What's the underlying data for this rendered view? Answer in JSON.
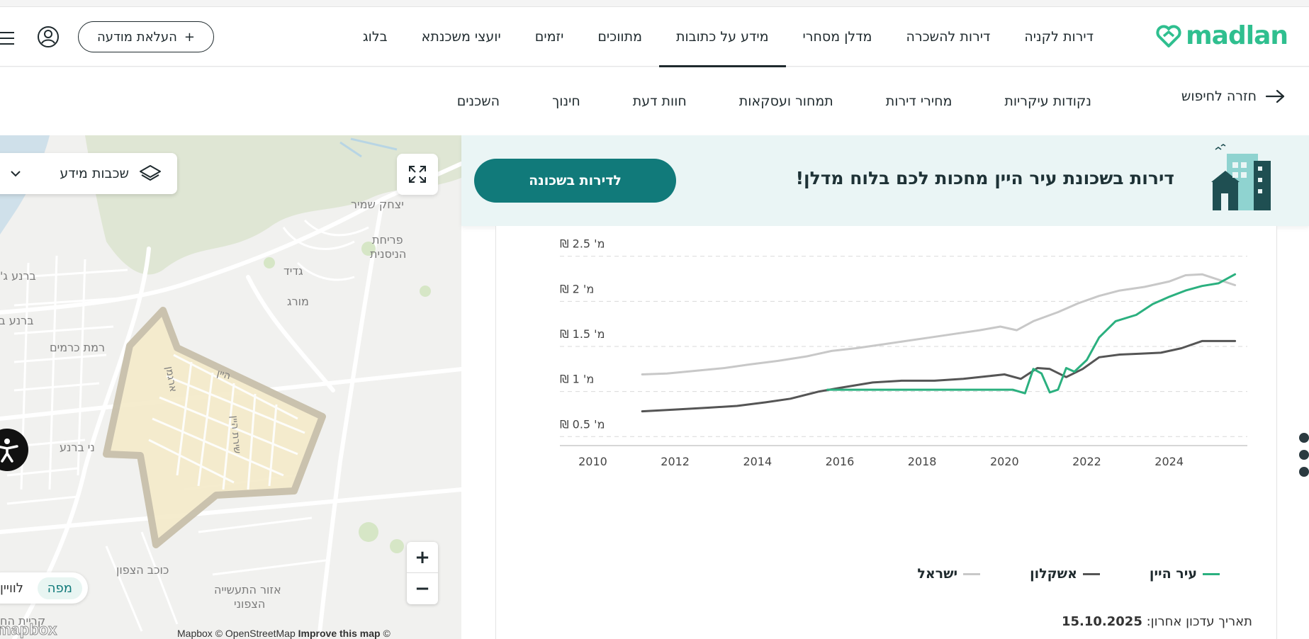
{
  "header": {
    "logo_text": "madlan",
    "nav": [
      {
        "label": "דירות לקניה"
      },
      {
        "label": "דירות להשכרה"
      },
      {
        "label": "מדלן מסחרי"
      },
      {
        "label": "מידע על כתובות",
        "active": true
      },
      {
        "label": "מתווכים"
      },
      {
        "label": "יזמים"
      },
      {
        "label": "יועצי משכנתא"
      },
      {
        "label": "בלוג"
      }
    ],
    "post_ad_label": "העלאת מודעה",
    "post_ad_plus": "+"
  },
  "subnav": {
    "back_label": "חזרה לחיפוש",
    "items": [
      {
        "label": "נקודות עיקריות"
      },
      {
        "label": "מחירי דירות"
      },
      {
        "label": "תמחור ועסקאות"
      },
      {
        "label": "חוות דעת"
      },
      {
        "label": "חינוך"
      },
      {
        "label": "השכנים"
      }
    ]
  },
  "map": {
    "layers_label": "שכבות מידע",
    "zoom_in": "+",
    "zoom_out": "−",
    "view_map": "מפה",
    "view_sat": "לוויין",
    "attribution": "Mapbox © OpenStreetMap",
    "improve": "Improve this map",
    "copyright": "©",
    "mapbox_logo": "mapbox",
    "labels": {
      "yitzhak_shamir": "יצחק שמיר",
      "priha": "פריחת",
      "hanisnit": "הניסנית",
      "gadid": "גדיד",
      "morag": "מורג",
      "barnea_g": "ברנע ג'",
      "barnea_b": "ברנע ב'",
      "ramat_kramim": "רמת כרמים",
      "nei_barnea": "ני ברנע",
      "kochav_hatzafon": "כוכב הצפון",
      "industrial": "אזור התעשייה",
      "industrial2": "הצפוני",
      "kiryat": "קריית הח",
      "street_argaman": "ארגמן",
      "street_hayain": "היין",
      "street_shirat": "שירת היין"
    }
  },
  "banner": {
    "text": "דירות בשכונת עיר היין מחכות לכם בלוח מדלן!",
    "button_label": "לדירות בשכונה"
  },
  "colors": {
    "brand": "#2fbf8f",
    "teal": "#117a7a",
    "series_green": "#2bb07f",
    "series_dark": "#555555",
    "series_gray": "#c8c8c8"
  },
  "chart_data": {
    "type": "line",
    "title": "",
    "ylabel": "",
    "ytick_unit": "מ' ₪",
    "yticks": [
      0.5,
      1,
      1.5,
      2,
      2.5
    ],
    "ylim": [
      0.4,
      2.6
    ],
    "xticks": [
      2010,
      2012,
      2014,
      2016,
      2018,
      2020,
      2022,
      2024
    ],
    "xlim": [
      2009.2,
      2025.9
    ],
    "grid": true,
    "legend_position": "bottom",
    "series": [
      {
        "name": "עיר היין",
        "color": "#2bb07f",
        "x": [
          2015.7,
          2016.5,
          2017.5,
          2018.5,
          2019.5,
          2019.9,
          2020.2,
          2020.5,
          2020.7,
          2020.9,
          2021.1,
          2021.3,
          2021.5,
          2021.7,
          2022.0,
          2022.3,
          2022.7,
          2023.2,
          2023.6,
          2024.0,
          2024.4,
          2024.8,
          2025.2,
          2025.6
        ],
        "y": [
          1.02,
          1.02,
          1.02,
          1.02,
          1.02,
          1.02,
          1.02,
          0.98,
          1.25,
          1.2,
          0.99,
          1.02,
          1.26,
          1.22,
          1.35,
          1.6,
          1.78,
          1.85,
          1.97,
          2.05,
          2.12,
          2.17,
          2.2,
          2.3
        ]
      },
      {
        "name": "אשקלון",
        "color": "#555555",
        "x": [
          2011.2,
          2012.0,
          2012.8,
          2013.5,
          2014.2,
          2014.8,
          2015.5,
          2016.0,
          2016.8,
          2017.5,
          2018.3,
          2019.0,
          2019.6,
          2020.0,
          2020.4,
          2020.8,
          2021.1,
          2021.5,
          2021.9,
          2022.3,
          2022.8,
          2023.3,
          2023.8,
          2024.3,
          2024.8,
          2025.6
        ],
        "y": [
          0.78,
          0.8,
          0.82,
          0.84,
          0.88,
          0.92,
          1.0,
          1.04,
          1.1,
          1.12,
          1.12,
          1.14,
          1.17,
          1.19,
          1.14,
          1.26,
          1.25,
          1.16,
          1.25,
          1.38,
          1.41,
          1.42,
          1.43,
          1.48,
          1.56,
          1.56
        ]
      },
      {
        "name": "ישראל",
        "color": "#c8c8c8",
        "x": [
          2011.2,
          2011.8,
          2012.5,
          2013.2,
          2013.8,
          2014.5,
          2015.2,
          2015.8,
          2016.4,
          2017.0,
          2017.6,
          2018.2,
          2018.8,
          2019.4,
          2019.9,
          2020.3,
          2020.7,
          2021.3,
          2021.8,
          2022.3,
          2022.8,
          2023.4,
          2024.0,
          2024.4,
          2024.8,
          2025.2,
          2025.6
        ],
        "y": [
          1.19,
          1.2,
          1.23,
          1.26,
          1.3,
          1.34,
          1.39,
          1.45,
          1.48,
          1.52,
          1.56,
          1.6,
          1.64,
          1.68,
          1.72,
          1.68,
          1.78,
          1.88,
          1.98,
          2.06,
          2.12,
          2.16,
          2.22,
          2.29,
          2.3,
          2.24,
          2.18
        ]
      }
    ]
  },
  "chart_footer": {
    "update_label": "תאריך עדכון אחרון:",
    "update_date": "15.10.2025"
  }
}
